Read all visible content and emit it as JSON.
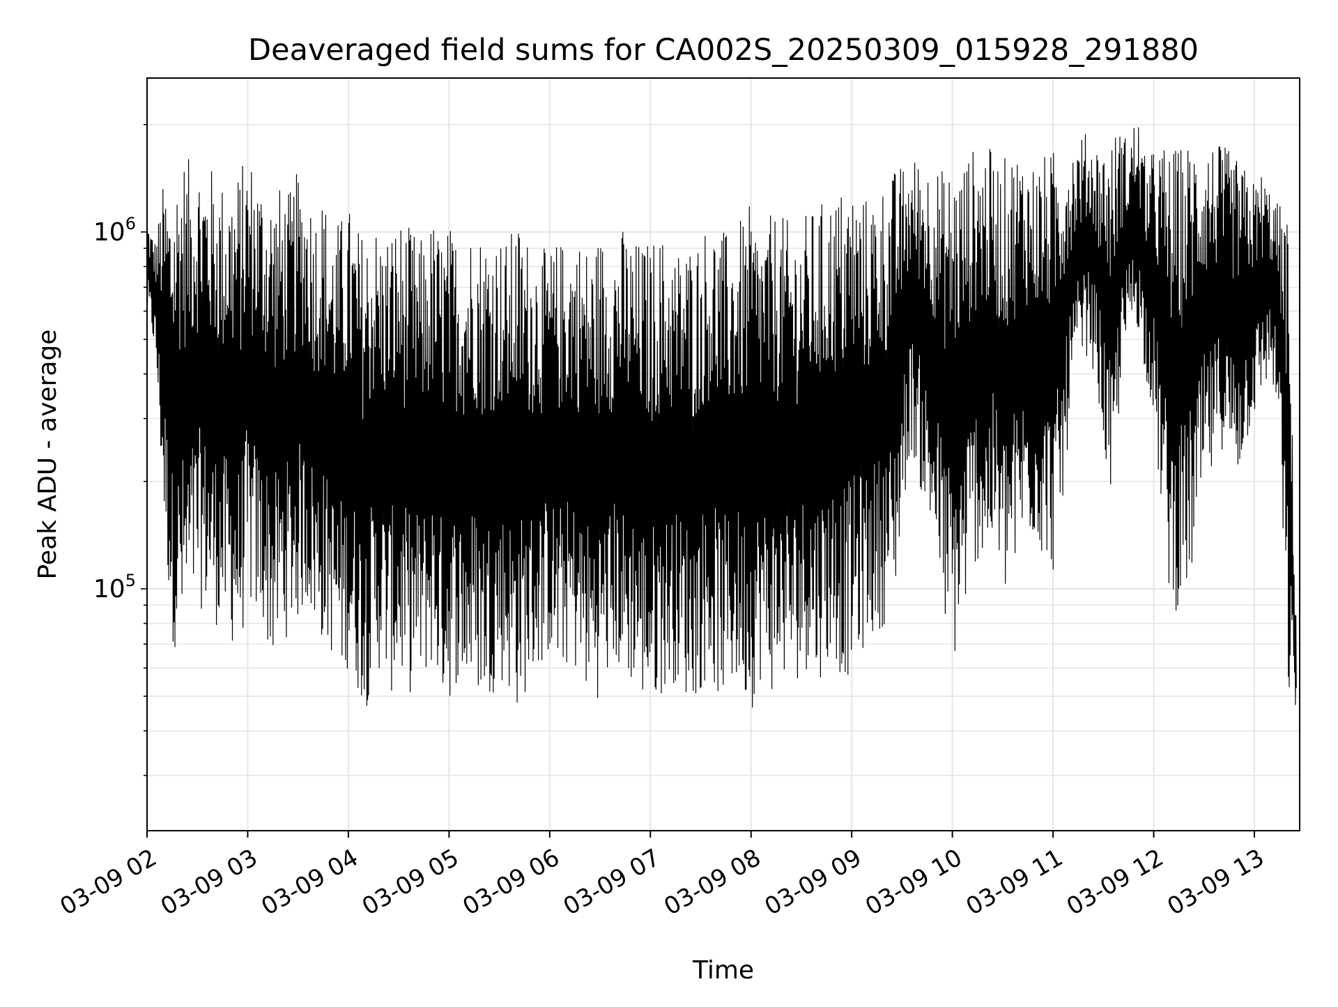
{
  "chart_data": {
    "type": "line",
    "title": "Deaveraged field sums for CA002S_20250309_015928_291880",
    "xlabel": "Time",
    "ylabel": "Peak ADU - average",
    "yscale": "log",
    "ylim": [
      21000,
      2700000
    ],
    "xlim": [
      "2025-03-09 02:00",
      "2025-03-09 13:27"
    ],
    "xticks": [
      "03-09 02",
      "03-09 03",
      "03-09 04",
      "03-09 05",
      "03-09 06",
      "03-09 07",
      "03-09 08",
      "03-09 09",
      "03-09 10",
      "03-09 11",
      "03-09 12",
      "03-09 13"
    ],
    "yticks": [
      {
        "value": 100000,
        "base": "10",
        "exp": "5"
      },
      {
        "value": 1000000,
        "base": "10",
        "exp": "6"
      }
    ],
    "grid": true,
    "series": [
      {
        "color": "#000000",
        "x": [
          "03-09 02:00",
          "03-09 02:05",
          "03-09 02:10",
          "03-09 02:15",
          "03-09 02:20",
          "03-09 02:25",
          "03-09 02:30",
          "03-09 02:35",
          "03-09 02:40",
          "03-09 02:45",
          "03-09 02:50",
          "03-09 02:55",
          "03-09 03:00",
          "03-09 03:05",
          "03-09 03:10",
          "03-09 03:15",
          "03-09 03:20",
          "03-09 03:25",
          "03-09 03:30",
          "03-09 03:35",
          "03-09 03:40",
          "03-09 03:45",
          "03-09 03:50",
          "03-09 03:55",
          "03-09 04:00",
          "03-09 04:05",
          "03-09 04:10",
          "03-09 04:15",
          "03-09 04:20",
          "03-09 04:25",
          "03-09 04:30",
          "03-09 04:35",
          "03-09 04:40",
          "03-09 04:45",
          "03-09 04:50",
          "03-09 04:55",
          "03-09 05:00",
          "03-09 05:05",
          "03-09 05:10",
          "03-09 05:15",
          "03-09 05:20",
          "03-09 05:25",
          "03-09 05:30",
          "03-09 05:35",
          "03-09 05:40",
          "03-09 05:45",
          "03-09 05:50",
          "03-09 05:55",
          "03-09 06:00",
          "03-09 06:05",
          "03-09 06:10",
          "03-09 06:15",
          "03-09 06:20",
          "03-09 06:25",
          "03-09 06:30",
          "03-09 06:35",
          "03-09 06:40",
          "03-09 06:45",
          "03-09 06:50",
          "03-09 06:55",
          "03-09 07:00",
          "03-09 07:05",
          "03-09 07:10",
          "03-09 07:15",
          "03-09 07:20",
          "03-09 07:25",
          "03-09 07:30",
          "03-09 07:35",
          "03-09 07:40",
          "03-09 07:45",
          "03-09 07:50",
          "03-09 07:55",
          "03-09 08:00",
          "03-09 08:05",
          "03-09 08:10",
          "03-09 08:15",
          "03-09 08:20",
          "03-09 08:25",
          "03-09 08:30",
          "03-09 08:35",
          "03-09 08:40",
          "03-09 08:45",
          "03-09 08:50",
          "03-09 08:55",
          "03-09 09:00",
          "03-09 09:05",
          "03-09 09:10",
          "03-09 09:15",
          "03-09 09:20",
          "03-09 09:25",
          "03-09 09:30",
          "03-09 09:35",
          "03-09 09:40",
          "03-09 09:45",
          "03-09 09:50",
          "03-09 09:55",
          "03-09 10:00",
          "03-09 10:05",
          "03-09 10:10",
          "03-09 10:15",
          "03-09 10:20",
          "03-09 10:25",
          "03-09 10:30",
          "03-09 10:35",
          "03-09 10:40",
          "03-09 10:45",
          "03-09 10:50",
          "03-09 10:55",
          "03-09 11:00",
          "03-09 11:05",
          "03-09 11:10",
          "03-09 11:15",
          "03-09 11:20",
          "03-09 11:25",
          "03-09 11:30",
          "03-09 11:35",
          "03-09 11:40",
          "03-09 11:45",
          "03-09 11:50",
          "03-09 11:55",
          "03-09 12:00",
          "03-09 12:05",
          "03-09 12:10",
          "03-09 12:15",
          "03-09 12:20",
          "03-09 12:25",
          "03-09 12:30",
          "03-09 12:35",
          "03-09 12:40",
          "03-09 12:45",
          "03-09 12:50",
          "03-09 12:55",
          "03-09 13:00",
          "03-09 13:05",
          "03-09 13:10",
          "03-09 13:15",
          "03-09 13:20",
          "03-09 13:25"
        ],
        "y_high": [
          1100000,
          950000,
          1400000,
          1300000,
          1700000,
          1600000,
          1650000,
          1600000,
          1500000,
          1400000,
          1450000,
          1500000,
          1700000,
          1550000,
          1400000,
          1350000,
          1350000,
          1300000,
          1500000,
          1400000,
          1200000,
          1300000,
          1050000,
          1100000,
          1200000,
          1050000,
          1000000,
          1100000,
          1000000,
          1050000,
          1100000,
          1050000,
          1000000,
          950000,
          1100000,
          1000000,
          1050000,
          1000000,
          950000,
          1100000,
          1000000,
          1050000,
          1000000,
          950000,
          1100000,
          1000000,
          950000,
          900000,
          900000,
          950000,
          950000,
          1000000,
          950000,
          900000,
          1000000,
          950000,
          1000000,
          1050000,
          950000,
          950000,
          950000,
          1000000,
          950000,
          900000,
          950000,
          950000,
          1000000,
          1100000,
          1050000,
          1000000,
          1050000,
          1100000,
          1200000,
          1050000,
          1100000,
          1150000,
          1100000,
          1050000,
          1100000,
          1150000,
          1200000,
          1250000,
          1300000,
          1350000,
          1400000,
          1300000,
          1250000,
          1350000,
          1400000,
          1500000,
          1550000,
          1600000,
          1650000,
          1600000,
          1550000,
          1500000,
          1550000,
          1600000,
          1700000,
          1750000,
          1800000,
          1650000,
          1600000,
          1700000,
          1750000,
          1650000,
          1600000,
          1650000,
          1700000,
          1800000,
          1750000,
          1850000,
          1900000,
          1800000,
          1750000,
          1850000,
          2000000,
          1800000,
          2200000,
          1600000,
          1700000,
          1800000,
          1700000,
          1750000,
          1800000,
          1900000,
          1850000,
          1800000,
          1750000,
          1700000,
          1600000,
          1500000,
          1400000,
          1500000,
          1300000,
          1200000,
          1100000,
          80000
        ],
        "y_low": [
          600000,
          450000,
          150000,
          70000,
          65000,
          75000,
          90000,
          85000,
          80000,
          75000,
          70000,
          65000,
          90000,
          80000,
          75000,
          60000,
          70000,
          75000,
          80000,
          90000,
          75000,
          70000,
          65000,
          55000,
          60000,
          52000,
          45000,
          55000,
          60000,
          50000,
          55000,
          50000,
          52000,
          55000,
          60000,
          50000,
          48000,
          55000,
          50000,
          52000,
          48000,
          50000,
          55000,
          52000,
          45000,
          50000,
          55000,
          60000,
          65000,
          55000,
          60000,
          58000,
          52000,
          48000,
          50000,
          55000,
          60000,
          50000,
          55000,
          48000,
          45000,
          50000,
          52000,
          55000,
          50000,
          48000,
          52000,
          55000,
          50000,
          48000,
          52000,
          50000,
          45000,
          55000,
          52000,
          50000,
          55000,
          52000,
          58000,
          60000,
          55000,
          60000,
          62000,
          55000,
          58000,
          65000,
          70000,
          75000,
          80000,
          85000,
          150000,
          250000,
          200000,
          150000,
          120000,
          80000,
          60000,
          70000,
          100000,
          120000,
          110000,
          130000,
          90000,
          100000,
          120000,
          140000,
          130000,
          120000,
          110000,
          150000,
          300000,
          400000,
          450000,
          400000,
          250000,
          150000,
          350000,
          500000,
          550000,
          400000,
          300000,
          150000,
          90000,
          85000,
          95000,
          120000,
          180000,
          200000,
          250000,
          220000,
          200000,
          250000,
          300000,
          350000,
          400000,
          250000,
          48000,
          45000
        ]
      }
    ]
  }
}
